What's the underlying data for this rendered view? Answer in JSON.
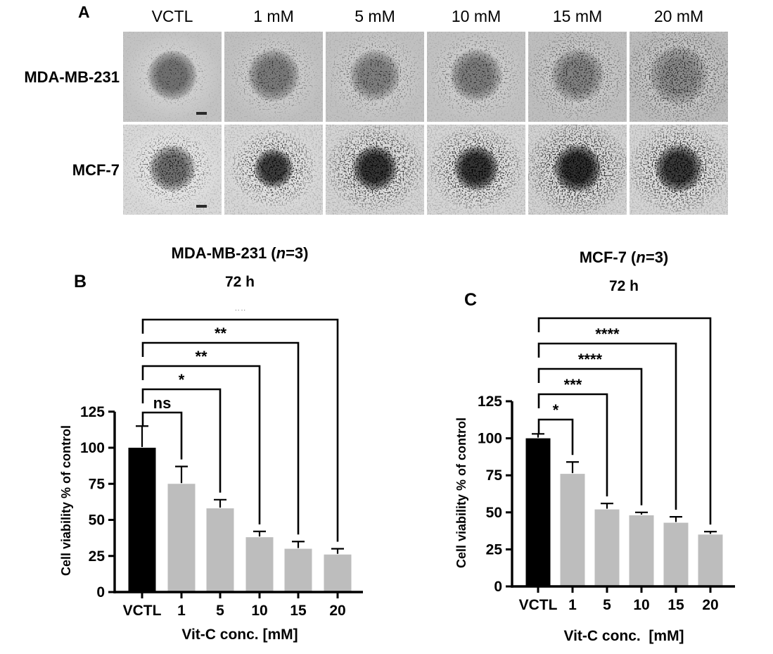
{
  "figure": {
    "panel_a": {
      "label": "A",
      "column_labels": [
        "VCTL",
        "1 mM",
        "5 mM",
        "10 mM",
        "15 mM",
        "20 mM"
      ],
      "row_labels": [
        "MDA-MB-231",
        "MCF-7"
      ]
    },
    "panel_b": {
      "label": "B"
    },
    "panel_c": {
      "label": "C"
    }
  },
  "chart_data": [
    {
      "type": "bar",
      "panel": "B",
      "cell_line": "MDA-MB-231",
      "n": 3,
      "title": {
        "pre": "MDA-MB-231 (",
        "italic": "n",
        "post": "=3)"
      },
      "subtitle": "72 h",
      "categories": [
        "VCTL",
        "1",
        "5",
        "10",
        "15",
        "20"
      ],
      "values": [
        100,
        75,
        58,
        38,
        30,
        26
      ],
      "errors_plus": [
        15,
        12,
        6,
        4,
        5,
        4
      ],
      "significance_vs_control": [
        {
          "group": "1",
          "label": "ns"
        },
        {
          "group": "5",
          "label": "*"
        },
        {
          "group": "10",
          "label": "**"
        },
        {
          "group": "15",
          "label": "**"
        },
        {
          "group": "20",
          "label": "**"
        }
      ],
      "ylabel": "Cell viability % of control",
      "xlabel": "Vit-C conc. [mM]",
      "ylim": [
        0,
        125
      ],
      "y_ticks": [
        0,
        25,
        50,
        75,
        100,
        125
      ],
      "grid": false,
      "legend": null,
      "bar_colors": {
        "control": "#000000",
        "treated": "#bdbdbd"
      }
    },
    {
      "type": "bar",
      "panel": "C",
      "cell_line": "MCF-7",
      "n": 3,
      "title": {
        "pre": "MCF-7 (",
        "italic": "n",
        "post": "=3)"
      },
      "subtitle": "72 h",
      "categories": [
        "VCTL",
        "1",
        "5",
        "10",
        "15",
        "20"
      ],
      "values": [
        100,
        76,
        52,
        48,
        43,
        35
      ],
      "errors_plus": [
        3,
        8,
        4,
        2,
        4,
        2
      ],
      "significance_vs_control": [
        {
          "group": "1",
          "label": "*"
        },
        {
          "group": "5",
          "label": "***"
        },
        {
          "group": "10",
          "label": "****"
        },
        {
          "group": "15",
          "label": "****"
        },
        {
          "group": "20",
          "label": "****"
        }
      ],
      "ylabel": "Cell viability % of control",
      "xlabel": "Vit-C conc.  [mM]",
      "ylim": [
        0,
        125
      ],
      "y_ticks": [
        0,
        25,
        50,
        75,
        100,
        125
      ],
      "grid": false,
      "legend": null,
      "bar_colors": {
        "control": "#000000",
        "treated": "#bdbdbd"
      }
    }
  ]
}
